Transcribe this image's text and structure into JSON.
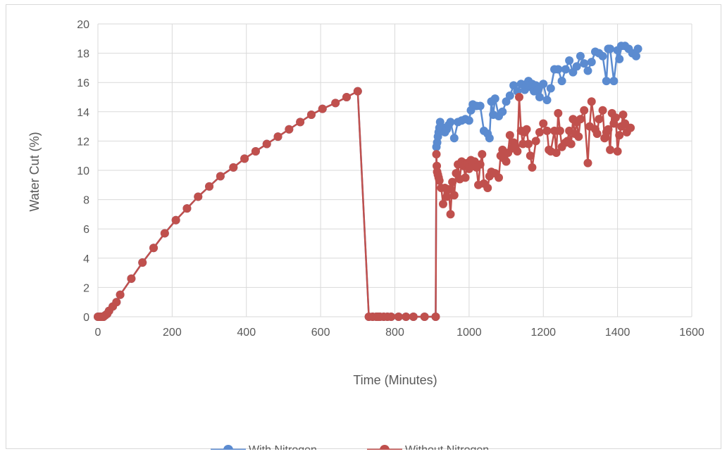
{
  "chart_data": {
    "type": "scatter",
    "title": "",
    "xlabel": "Time (Minutes)",
    "ylabel": "Water Cut (%)",
    "xlim": [
      0,
      1600
    ],
    "ylim": [
      0,
      20
    ],
    "xticks": [
      "0",
      "200",
      "400",
      "600",
      "800",
      "1000",
      "1200",
      "1400",
      "1600"
    ],
    "yticks": [
      "0",
      "2",
      "4",
      "6",
      "8",
      "10",
      "12",
      "14",
      "16",
      "18",
      "20"
    ],
    "grid": "vertical and horizontal",
    "legend_position": "bottom",
    "series": [
      {
        "name": "With Nitrogen",
        "color": "#5b8bd0",
        "points": [
          [
            0,
            0
          ],
          [
            5,
            0
          ],
          [
            10,
            0
          ],
          [
            15,
            0
          ],
          [
            20,
            0.1
          ],
          [
            25,
            0.2
          ],
          [
            30,
            0.4
          ],
          [
            40,
            0.7
          ],
          [
            50,
            1.0
          ],
          [
            60,
            1.5
          ],
          [
            90,
            2.6
          ],
          [
            120,
            3.7
          ],
          [
            150,
            4.7
          ],
          [
            180,
            5.7
          ],
          [
            210,
            6.6
          ],
          [
            240,
            7.4
          ],
          [
            270,
            8.2
          ],
          [
            300,
            8.9
          ],
          [
            330,
            9.6
          ],
          [
            365,
            10.2
          ],
          [
            395,
            10.8
          ],
          [
            425,
            11.3
          ],
          [
            455,
            11.8
          ],
          [
            485,
            12.3
          ],
          [
            515,
            12.8
          ],
          [
            545,
            13.3
          ],
          [
            575,
            13.8
          ],
          [
            605,
            14.2
          ],
          [
            640,
            14.6
          ],
          [
            670,
            15.0
          ],
          [
            700,
            15.4
          ],
          [
            730,
            0
          ],
          [
            740,
            0
          ],
          [
            750,
            0
          ],
          [
            755,
            0
          ],
          [
            760,
            0
          ],
          [
            770,
            0
          ],
          [
            780,
            0
          ],
          [
            790,
            0
          ],
          [
            810,
            0
          ],
          [
            830,
            0
          ],
          [
            850,
            0
          ],
          [
            880,
            0
          ],
          [
            910,
            0
          ],
          [
            912,
            11.6
          ],
          [
            914,
            11.9
          ],
          [
            916,
            12.3
          ],
          [
            918,
            12.6
          ],
          [
            920,
            12.9
          ],
          [
            922,
            13.3
          ],
          [
            925,
            12.7
          ],
          [
            930,
            12.9
          ],
          [
            935,
            12.6
          ],
          [
            940,
            12.8
          ],
          [
            945,
            13.1
          ],
          [
            950,
            13.3
          ],
          [
            960,
            12.2
          ],
          [
            970,
            13.3
          ],
          [
            980,
            13.4
          ],
          [
            990,
            13.5
          ],
          [
            1000,
            13.4
          ],
          [
            1005,
            14.1
          ],
          [
            1010,
            14.5
          ],
          [
            1020,
            14.4
          ],
          [
            1030,
            14.4
          ],
          [
            1040,
            12.7
          ],
          [
            1050,
            12.5
          ],
          [
            1055,
            12.2
          ],
          [
            1060,
            14.7
          ],
          [
            1065,
            13.8
          ],
          [
            1070,
            14.9
          ],
          [
            1080,
            13.7
          ],
          [
            1090,
            14.0
          ],
          [
            1100,
            14.7
          ],
          [
            1110,
            15.1
          ],
          [
            1120,
            15.8
          ],
          [
            1130,
            15.4
          ],
          [
            1140,
            15.9
          ],
          [
            1150,
            15.5
          ],
          [
            1155,
            15.9
          ],
          [
            1160,
            16.1
          ],
          [
            1165,
            15.7
          ],
          [
            1170,
            15.9
          ],
          [
            1175,
            15.4
          ],
          [
            1180,
            15.8
          ],
          [
            1185,
            15.5
          ],
          [
            1190,
            15.0
          ],
          [
            1200,
            15.9
          ],
          [
            1210,
            14.8
          ],
          [
            1220,
            15.6
          ],
          [
            1230,
            16.9
          ],
          [
            1240,
            16.9
          ],
          [
            1250,
            16.1
          ],
          [
            1260,
            16.9
          ],
          [
            1270,
            17.5
          ],
          [
            1280,
            16.7
          ],
          [
            1290,
            17.1
          ],
          [
            1300,
            17.8
          ],
          [
            1310,
            17.3
          ],
          [
            1320,
            16.8
          ],
          [
            1330,
            17.4
          ],
          [
            1340,
            18.1
          ],
          [
            1350,
            18.0
          ],
          [
            1360,
            17.8
          ],
          [
            1370,
            16.1
          ],
          [
            1375,
            18.3
          ],
          [
            1380,
            18.3
          ],
          [
            1390,
            16.1
          ],
          [
            1400,
            18.2
          ],
          [
            1405,
            17.6
          ],
          [
            1410,
            18.5
          ],
          [
            1420,
            18.5
          ],
          [
            1430,
            18.3
          ],
          [
            1440,
            18.0
          ],
          [
            1450,
            17.8
          ],
          [
            1455,
            18.3
          ]
        ]
      },
      {
        "name": "Without Nitrogen",
        "color": "#c0504d",
        "points": [
          [
            0,
            0
          ],
          [
            5,
            0
          ],
          [
            10,
            0
          ],
          [
            15,
            0
          ],
          [
            20,
            0.1
          ],
          [
            25,
            0.2
          ],
          [
            30,
            0.4
          ],
          [
            40,
            0.7
          ],
          [
            50,
            1.0
          ],
          [
            60,
            1.5
          ],
          [
            90,
            2.6
          ],
          [
            120,
            3.7
          ],
          [
            150,
            4.7
          ],
          [
            180,
            5.7
          ],
          [
            210,
            6.6
          ],
          [
            240,
            7.4
          ],
          [
            270,
            8.2
          ],
          [
            300,
            8.9
          ],
          [
            330,
            9.6
          ],
          [
            365,
            10.2
          ],
          [
            395,
            10.8
          ],
          [
            425,
            11.3
          ],
          [
            455,
            11.8
          ],
          [
            485,
            12.3
          ],
          [
            515,
            12.8
          ],
          [
            545,
            13.3
          ],
          [
            575,
            13.8
          ],
          [
            605,
            14.2
          ],
          [
            640,
            14.6
          ],
          [
            670,
            15.0
          ],
          [
            700,
            15.4
          ],
          [
            730,
            0
          ],
          [
            740,
            0
          ],
          [
            750,
            0
          ],
          [
            755,
            0
          ],
          [
            760,
            0
          ],
          [
            770,
            0
          ],
          [
            780,
            0
          ],
          [
            790,
            0
          ],
          [
            810,
            0
          ],
          [
            830,
            0
          ],
          [
            850,
            0
          ],
          [
            880,
            0
          ],
          [
            910,
            0
          ],
          [
            912,
            11.1
          ],
          [
            913,
            10.3
          ],
          [
            914,
            9.9
          ],
          [
            916,
            9.7
          ],
          [
            918,
            9.5
          ],
          [
            920,
            9.3
          ],
          [
            925,
            8.8
          ],
          [
            930,
            7.7
          ],
          [
            935,
            8.8
          ],
          [
            940,
            8.2
          ],
          [
            945,
            8.7
          ],
          [
            950,
            7.0
          ],
          [
            955,
            9.2
          ],
          [
            960,
            8.3
          ],
          [
            965,
            9.8
          ],
          [
            970,
            10.4
          ],
          [
            975,
            9.4
          ],
          [
            980,
            10.6
          ],
          [
            985,
            10.3
          ],
          [
            990,
            9.5
          ],
          [
            995,
            10.5
          ],
          [
            1000,
            10.1
          ],
          [
            1005,
            10.7
          ],
          [
            1010,
            10.3
          ],
          [
            1015,
            10.6
          ],
          [
            1020,
            10.2
          ],
          [
            1025,
            9.0
          ],
          [
            1030,
            10.4
          ],
          [
            1035,
            11.1
          ],
          [
            1040,
            9.1
          ],
          [
            1050,
            8.8
          ],
          [
            1055,
            9.6
          ],
          [
            1060,
            9.9
          ],
          [
            1070,
            9.8
          ],
          [
            1080,
            9.5
          ],
          [
            1085,
            11.0
          ],
          [
            1090,
            11.4
          ],
          [
            1095,
            10.8
          ],
          [
            1100,
            10.6
          ],
          [
            1105,
            11.2
          ],
          [
            1110,
            12.4
          ],
          [
            1115,
            11.5
          ],
          [
            1120,
            11.9
          ],
          [
            1125,
            11.6
          ],
          [
            1130,
            11.3
          ],
          [
            1135,
            15.0
          ],
          [
            1140,
            12.7
          ],
          [
            1145,
            11.8
          ],
          [
            1150,
            12.6
          ],
          [
            1155,
            12.8
          ],
          [
            1160,
            11.8
          ],
          [
            1165,
            11.0
          ],
          [
            1170,
            10.2
          ],
          [
            1180,
            12.0
          ],
          [
            1190,
            12.6
          ],
          [
            1200,
            13.2
          ],
          [
            1210,
            12.7
          ],
          [
            1215,
            11.4
          ],
          [
            1220,
            11.3
          ],
          [
            1230,
            12.7
          ],
          [
            1235,
            11.2
          ],
          [
            1240,
            13.9
          ],
          [
            1245,
            12.7
          ],
          [
            1250,
            11.6
          ],
          [
            1260,
            11.9
          ],
          [
            1265,
            12.0
          ],
          [
            1270,
            12.7
          ],
          [
            1275,
            11.8
          ],
          [
            1280,
            13.5
          ],
          [
            1285,
            12.5
          ],
          [
            1290,
            13.3
          ],
          [
            1295,
            12.3
          ],
          [
            1300,
            13.5
          ],
          [
            1310,
            14.1
          ],
          [
            1320,
            10.5
          ],
          [
            1325,
            13.0
          ],
          [
            1330,
            14.7
          ],
          [
            1340,
            12.8
          ],
          [
            1345,
            12.5
          ],
          [
            1350,
            13.5
          ],
          [
            1360,
            14.1
          ],
          [
            1365,
            12.2
          ],
          [
            1370,
            12.6
          ],
          [
            1375,
            12.8
          ],
          [
            1380,
            11.4
          ],
          [
            1385,
            13.9
          ],
          [
            1390,
            13.2
          ],
          [
            1395,
            13.6
          ],
          [
            1400,
            11.3
          ],
          [
            1405,
            12.4
          ],
          [
            1410,
            13.0
          ],
          [
            1415,
            13.8
          ],
          [
            1420,
            13.2
          ],
          [
            1425,
            12.6
          ],
          [
            1435,
            12.9
          ]
        ]
      }
    ]
  }
}
